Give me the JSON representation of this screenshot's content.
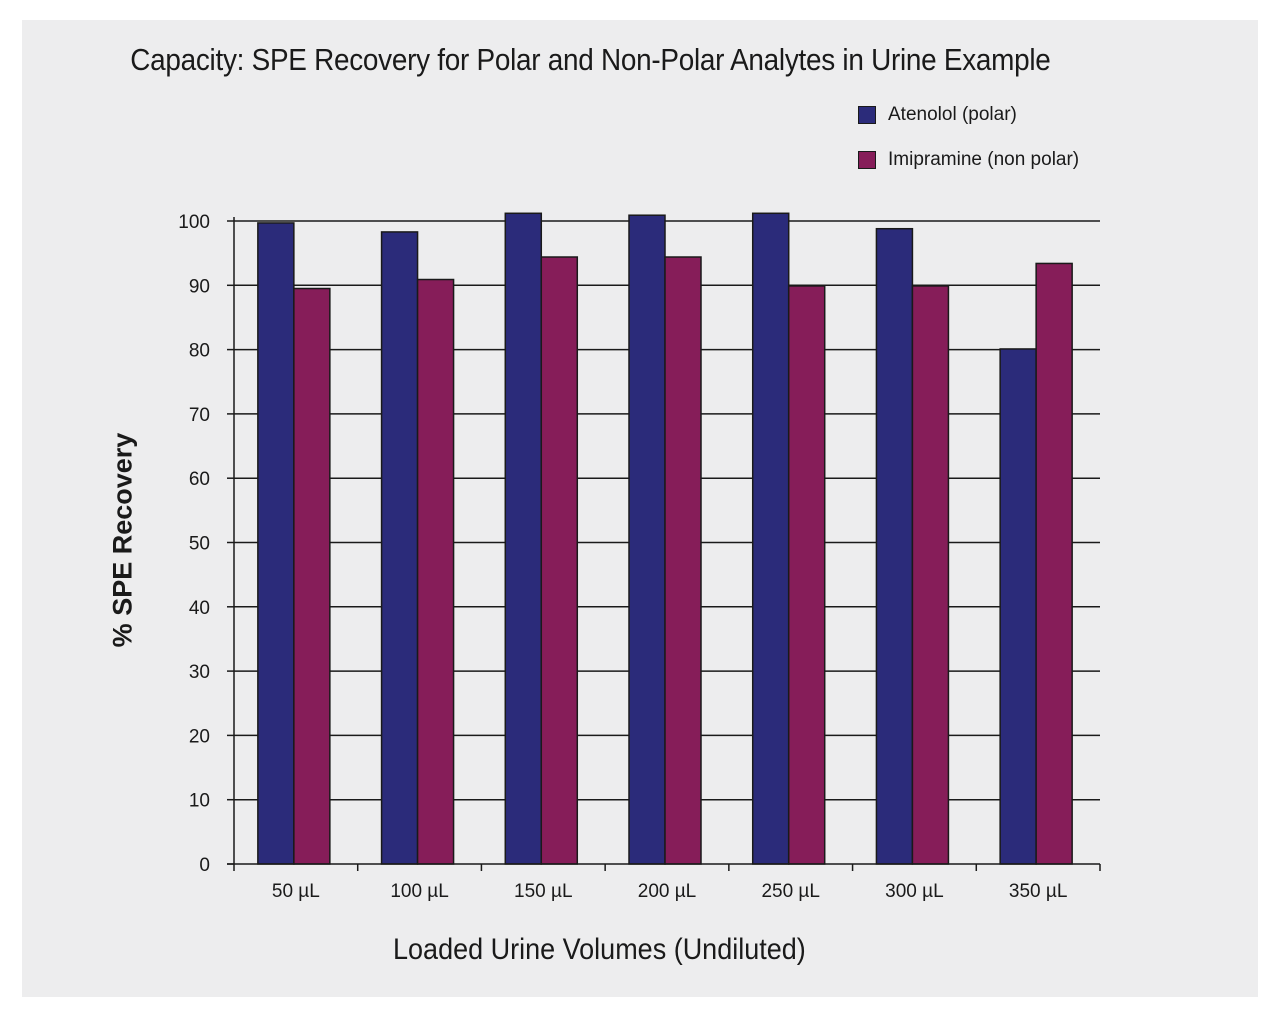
{
  "chart_data": {
    "type": "bar",
    "title": "Capacity: SPE Recovery for Polar and Non-Polar Analytes in Urine Example",
    "xlabel": "Loaded Urine Volumes (Undiluted)",
    "ylabel": "% SPE Recovery",
    "categories": [
      "50 µL",
      "100 µL",
      "150 µL",
      "200 µL",
      "250 µL",
      "300 µL",
      "350 µL"
    ],
    "series": [
      {
        "name": "Atenolol (polar)",
        "color": "#2b2b7a",
        "values": [
          99.7,
          98.3,
          101.2,
          100.9,
          101.2,
          98.8,
          80.1
        ]
      },
      {
        "name": "Imipramine (non polar)",
        "color": "#861d59",
        "values": [
          89.5,
          90.9,
          94.4,
          94.4,
          89.9,
          89.9,
          93.4
        ]
      }
    ],
    "ylim": [
      0,
      100
    ],
    "yticks": [
      0,
      10,
      20,
      30,
      40,
      50,
      60,
      70,
      80,
      90,
      100
    ],
    "grid": true,
    "legend": "top-right"
  }
}
